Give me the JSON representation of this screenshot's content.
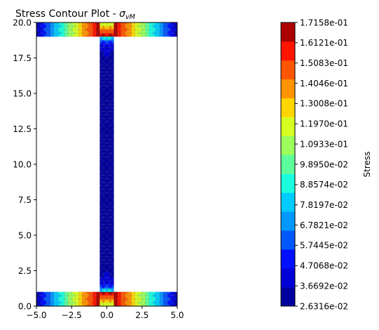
{
  "chart_data": [
    {
      "type": "contour",
      "title_main": "Stress Contour Plot - ",
      "title_symbol": "σ",
      "title_subscript": "vM",
      "xlim": [
        -5,
        5
      ],
      "ylim": [
        0,
        20
      ],
      "x_ticks": [
        -5.0,
        -2.5,
        0.0,
        2.5,
        5.0
      ],
      "y_ticks": [
        0.0,
        2.5,
        5.0,
        7.5,
        10.0,
        12.5,
        15.0,
        17.5,
        20.0
      ],
      "x_tick_labels": [
        "−5.0",
        "−2.5",
        "0.0",
        "2.5",
        "5.0"
      ],
      "y_tick_labels": [
        "0.0",
        "2.5",
        "5.0",
        "7.5",
        "10.0",
        "12.5",
        "15.0",
        "17.5",
        "20.0"
      ],
      "domain": {
        "flanges": [
          {
            "x": [
              -5,
              5
            ],
            "y": [
              0,
              1
            ]
          },
          {
            "x": [
              -5,
              5
            ],
            "y": [
              19,
              20
            ]
          }
        ],
        "web": {
          "x": [
            -0.5,
            0.5
          ],
          "y": [
            1,
            19
          ]
        }
      }
    },
    {
      "type": "colorbar",
      "label": "Stress",
      "min": 0.026316,
      "max": 0.17158,
      "tick_labels": [
        "2.6316e-02",
        "3.6692e-02",
        "4.7068e-02",
        "5.7445e-02",
        "6.7821e-02",
        "7.8197e-02",
        "8.8574e-02",
        "9.8950e-02",
        "1.0933e-01",
        "1.1970e-01",
        "1.3008e-01",
        "1.4046e-01",
        "1.5083e-01",
        "1.6121e-01",
        "1.7158e-01"
      ],
      "colors": [
        "#00009f",
        "#0000d9",
        "#0010ff",
        "#0058ff",
        "#0098ff",
        "#00ccff",
        "#19ffde",
        "#5cff9b",
        "#9bff5c",
        "#d6ff21",
        "#ffd600",
        "#ff9400",
        "#ff5400",
        "#ff1400",
        "#ac0000"
      ]
    }
  ]
}
